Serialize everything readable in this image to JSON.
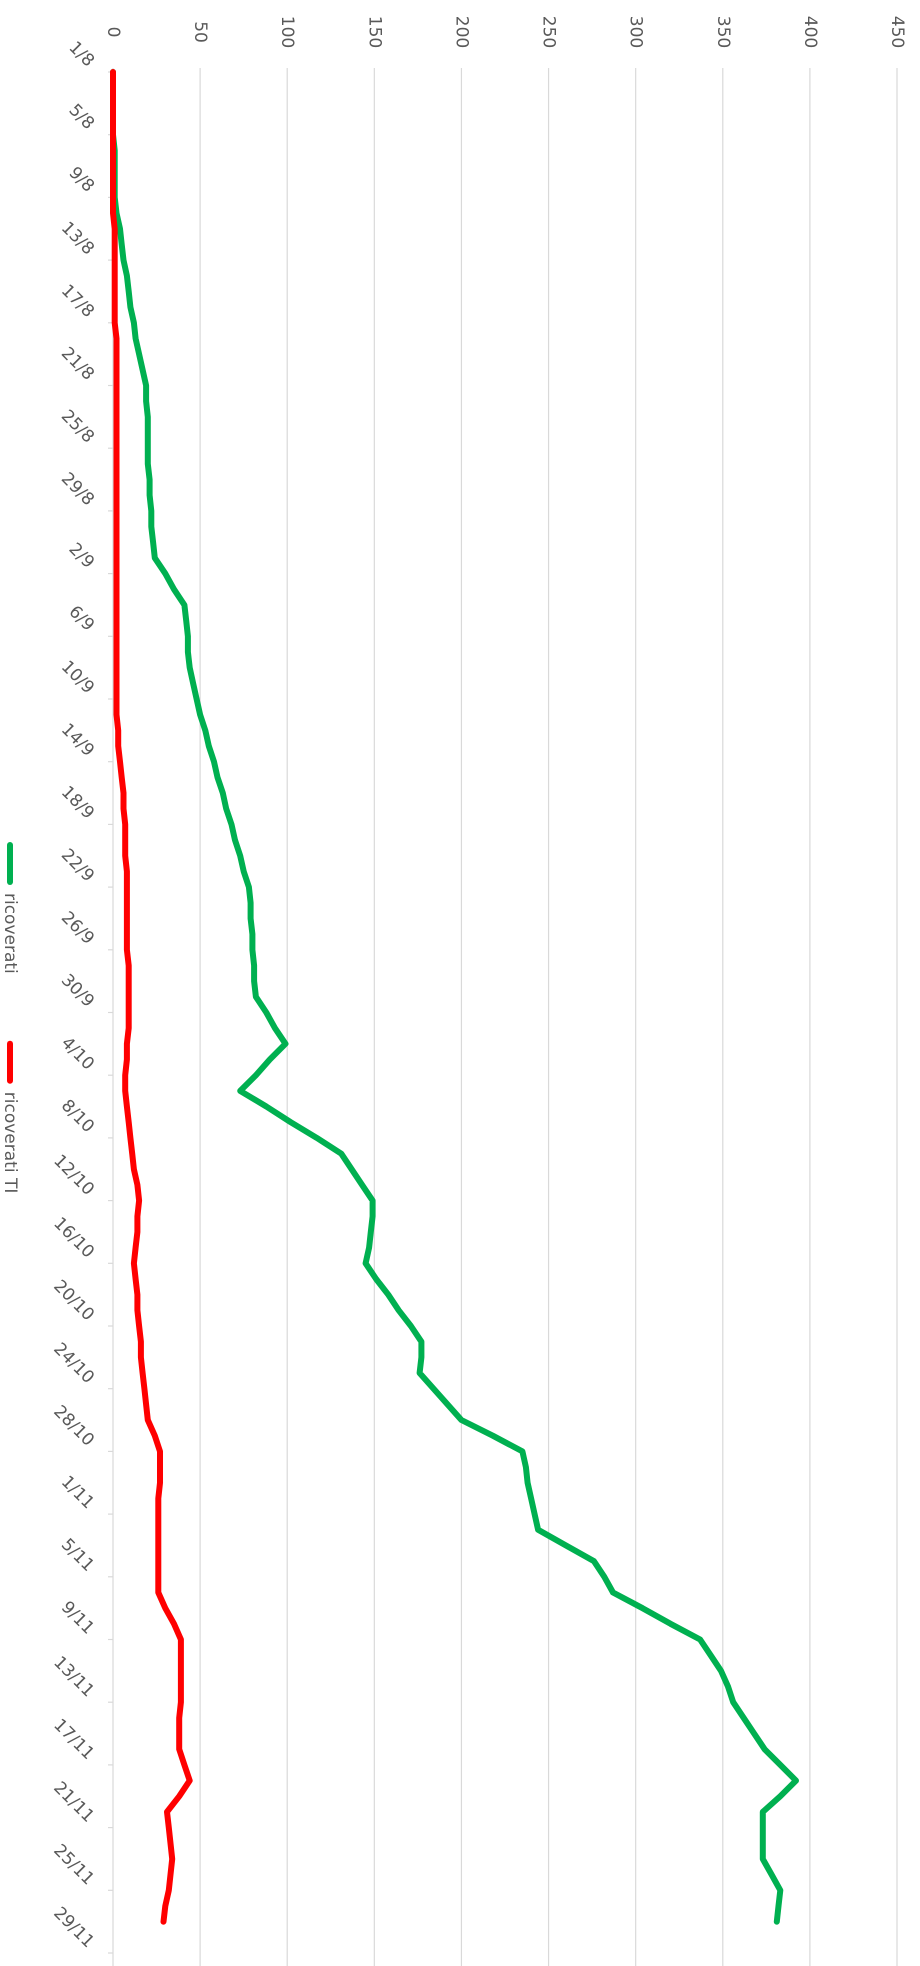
{
  "chart_data": {
    "type": "line",
    "categories": [
      "1/8",
      null,
      null,
      null,
      "5/8",
      null,
      null,
      null,
      "9/8",
      null,
      null,
      null,
      "13/8",
      null,
      null,
      null,
      "17/8",
      null,
      null,
      null,
      "21/8",
      null,
      null,
      null,
      "25/8",
      null,
      null,
      null,
      "29/8",
      null,
      null,
      null,
      "2/9",
      null,
      null,
      null,
      "6/9",
      null,
      null,
      null,
      "10/9",
      null,
      null,
      null,
      "14/9",
      null,
      null,
      null,
      "18/9",
      null,
      null,
      null,
      "22/9",
      null,
      null,
      null,
      "26/9",
      null,
      null,
      null,
      "30/9",
      null,
      null,
      null,
      "4/10",
      null,
      null,
      null,
      "8/10",
      null,
      null,
      null,
      "12/10",
      null,
      null,
      null,
      "16/10",
      null,
      null,
      null,
      "20/10",
      null,
      null,
      null,
      "24/10",
      null,
      null,
      null,
      "28/10",
      null,
      null,
      null,
      "1/11",
      null,
      null,
      null,
      "5/11",
      null,
      null,
      null,
      "9/11",
      null,
      null,
      null,
      "13/11",
      null,
      null,
      null,
      "17/11",
      null,
      null,
      null,
      "21/11",
      null,
      null,
      null,
      "25/11",
      null,
      null,
      null,
      "29/11"
    ],
    "series": [
      {
        "name": "ricoverati",
        "color": "#00b050",
        "values": [
          0,
          0,
          0,
          0,
          0,
          1,
          1,
          1,
          1,
          2,
          4,
          5,
          6,
          8,
          9,
          10,
          12,
          13,
          15,
          17,
          19,
          19,
          20,
          20,
          20,
          20,
          21,
          21,
          22,
          22,
          23,
          24,
          30,
          35,
          41,
          42,
          43,
          43,
          44,
          46,
          48,
          50,
          53,
          55,
          58,
          60,
          63,
          65,
          68,
          70,
          73,
          75,
          78,
          79,
          79,
          80,
          80,
          81,
          81,
          82,
          88,
          93,
          99,
          90,
          82,
          73,
          88,
          102,
          117,
          131,
          137,
          143,
          149,
          149,
          148,
          147,
          145,
          151,
          158,
          164,
          171,
          177,
          177,
          176,
          184,
          192,
          200,
          218,
          235,
          237,
          238,
          240,
          242,
          244,
          260,
          276,
          282,
          287,
          304,
          320,
          337,
          343,
          349,
          353,
          356,
          362,
          368,
          374,
          383,
          392,
          383,
          373,
          373,
          373,
          373,
          378,
          383,
          382,
          381,
          null,
          null
        ]
      },
      {
        "name": "ricoverati TI",
        "color": "#ff0000",
        "values": [
          0,
          0,
          0,
          0,
          0,
          0,
          0,
          0,
          0,
          0,
          1,
          1,
          1,
          1,
          1,
          1,
          1,
          2,
          2,
          2,
          2,
          2,
          2,
          2,
          2,
          2,
          2,
          2,
          2,
          2,
          2,
          2,
          2,
          2,
          2,
          2,
          2,
          2,
          2,
          2,
          2,
          2,
          3,
          3,
          4,
          5,
          6,
          6,
          7,
          7,
          7,
          8,
          8,
          8,
          8,
          8,
          8,
          9,
          9,
          9,
          9,
          9,
          8,
          8,
          7,
          7,
          8,
          9,
          10,
          11,
          12,
          14,
          15,
          14,
          14,
          13,
          12,
          13,
          14,
          14,
          15,
          16,
          16,
          17,
          18,
          19,
          20,
          24,
          27,
          27,
          27,
          26,
          26,
          26,
          26,
          26,
          26,
          26,
          30,
          35,
          39,
          39,
          39,
          39,
          39,
          38,
          38,
          38,
          41,
          44,
          38,
          31,
          32,
          33,
          34,
          33,
          32,
          30,
          29,
          null,
          null
        ]
      }
    ],
    "ylim": [
      0,
      450
    ],
    "yticks": [
      0,
      50,
      100,
      150,
      200,
      250,
      300,
      350,
      400,
      450
    ],
    "grid": true,
    "legend": "left"
  }
}
